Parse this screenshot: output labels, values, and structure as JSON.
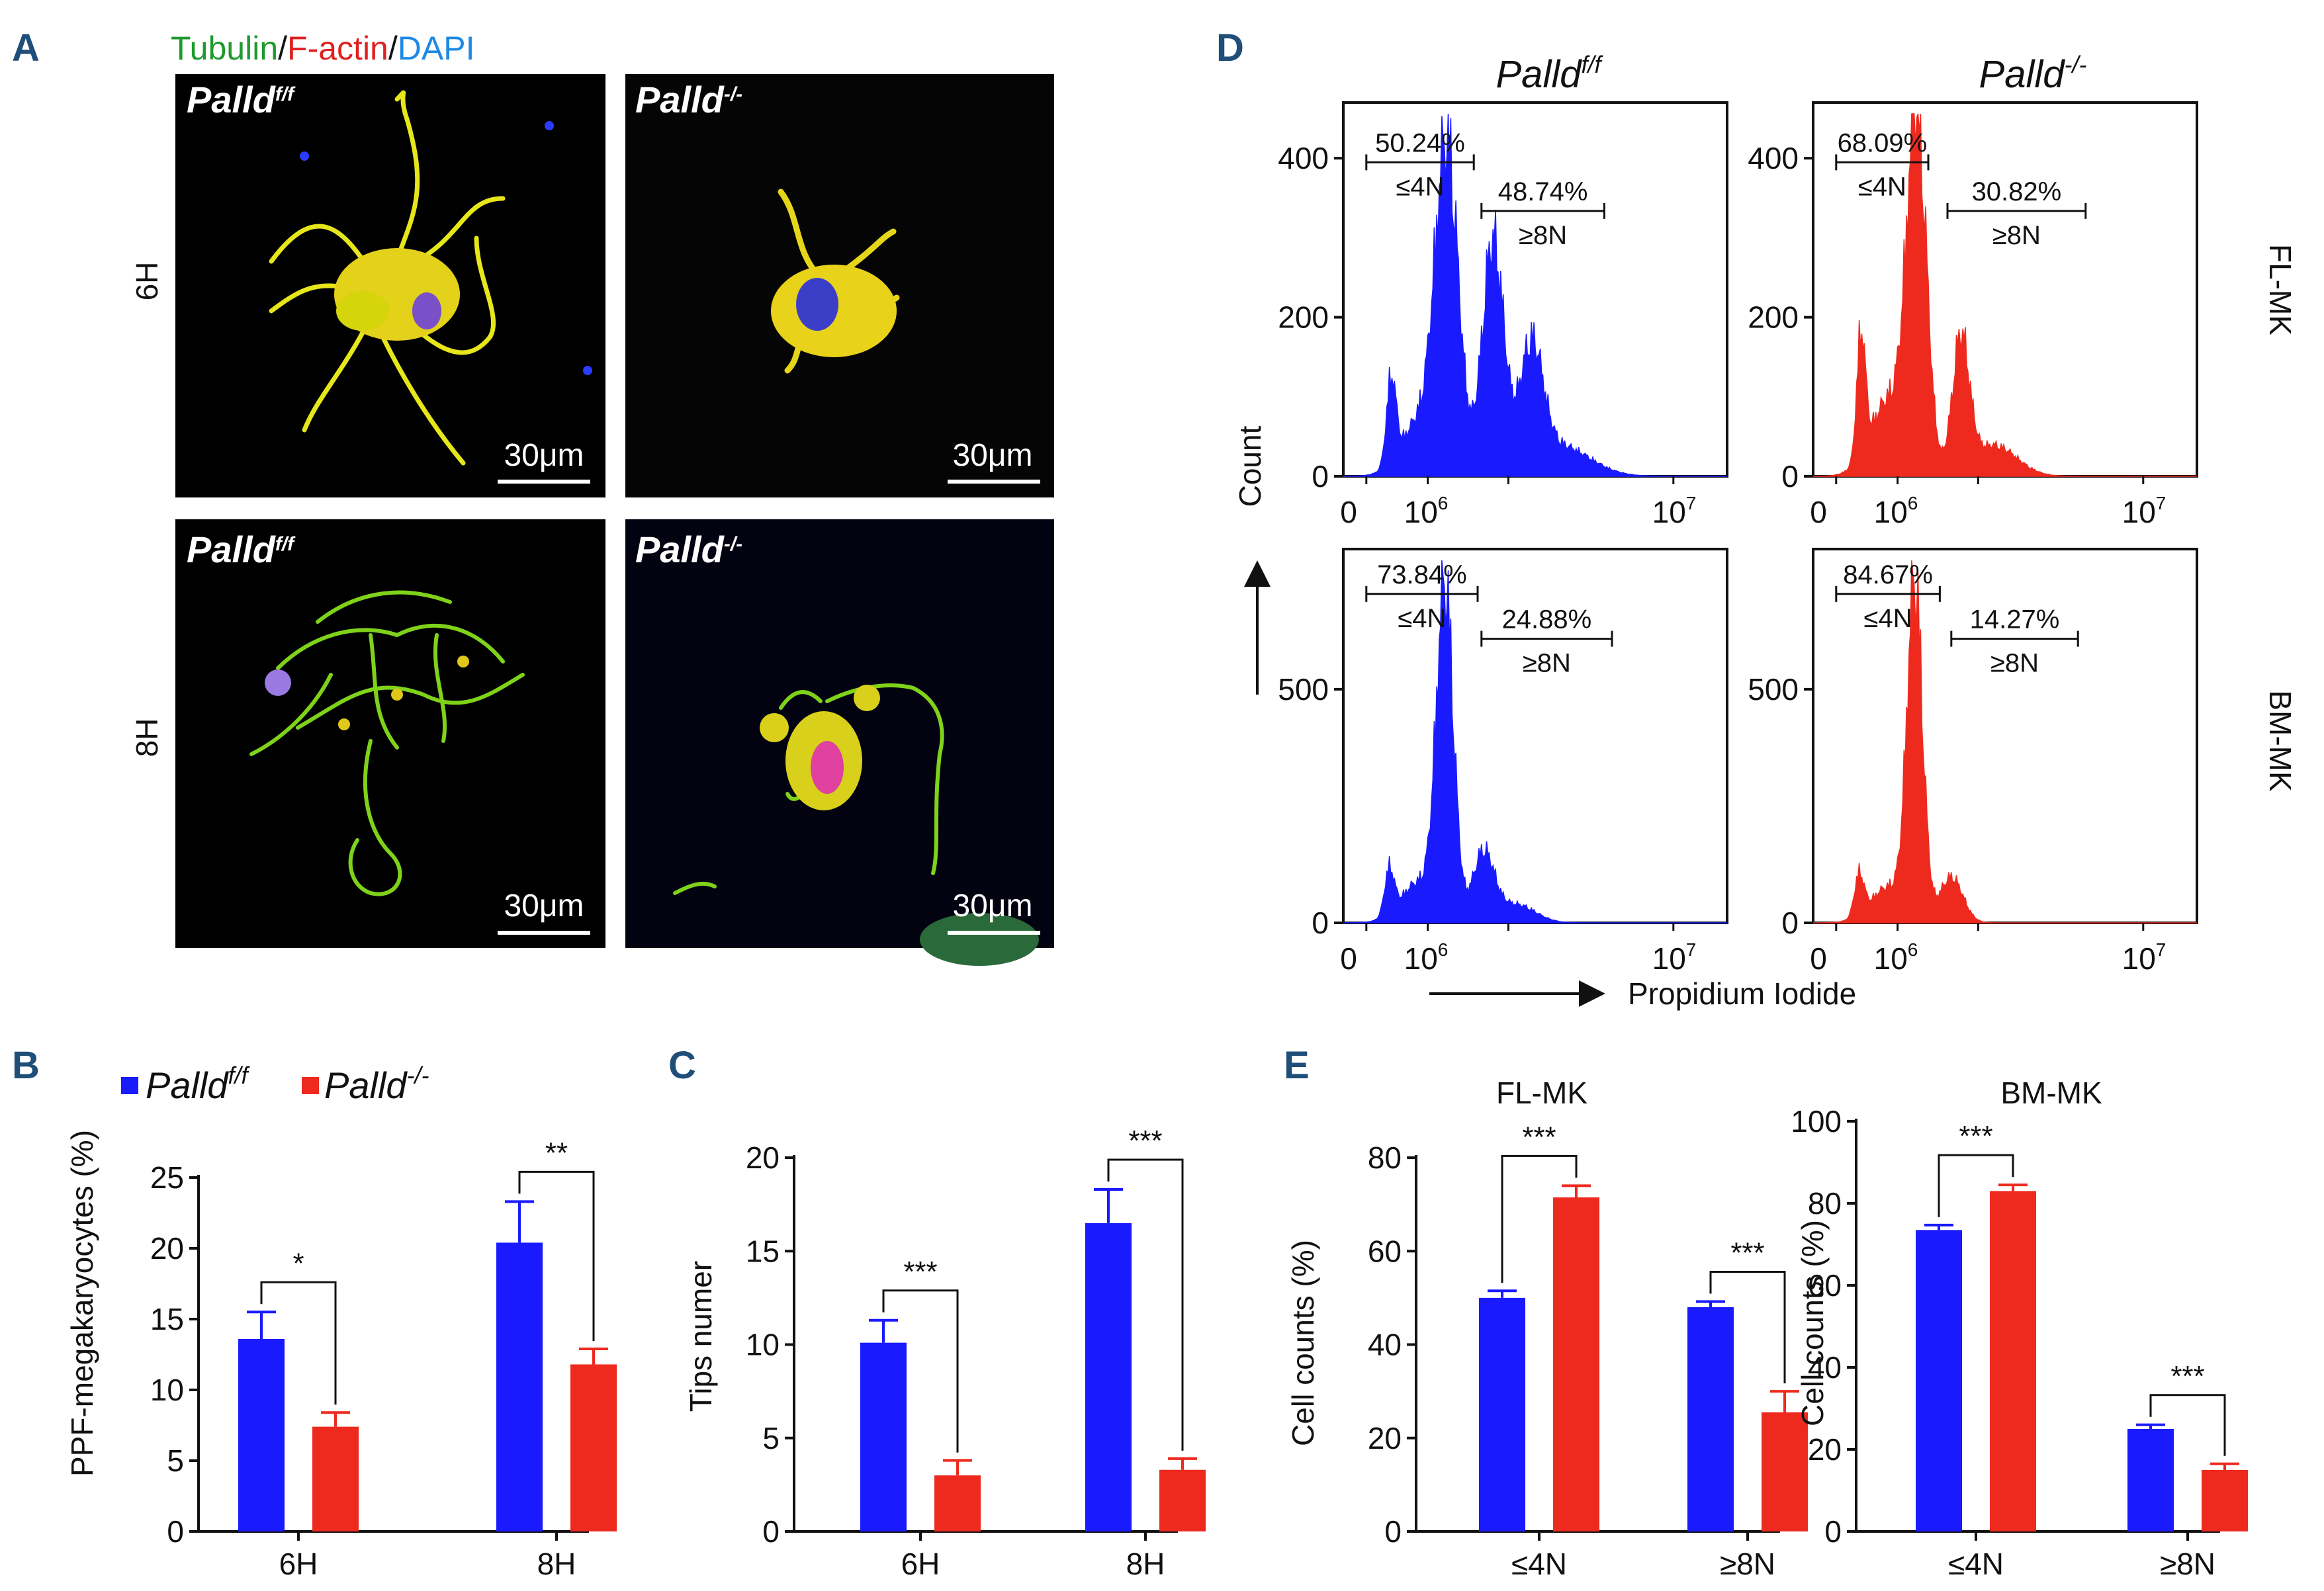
{
  "panels": {
    "A": "A",
    "B": "B",
    "C": "C",
    "D": "D",
    "E": "E"
  },
  "legend": {
    "label_ff": "Palld",
    "sup_ff": "f/f",
    "label_ko": "Palld",
    "sup_ko": "-/-"
  },
  "colors": {
    "ff": "#1a1aff",
    "ko": "#ee2a1f"
  },
  "panelA": {
    "stain_tubulin": "Tubulin",
    "stain_factin": "F-actin",
    "stain_dapi": "DAPI",
    "sep": "/",
    "row_6h": "6H",
    "row_8h": "8H",
    "scale": "30μm",
    "genotype": "Palld",
    "sup_ff": "f/f",
    "sup_ko": "-/-"
  },
  "panelD": {
    "col_ff": "Palld",
    "col_ff_sup": "f/f",
    "col_ko": "Palld",
    "col_ko_sup": "-/-",
    "row_fl": "FL-MK",
    "row_bm": "BM-MK",
    "ylabel": "Count",
    "xlabel": "Propidium Iodide",
    "x_ticks": {
      "t0": "0",
      "t6": "10",
      "e6": "6",
      "t7": "10",
      "e7": "7"
    },
    "fl_ticks": [
      "0",
      "200",
      "400"
    ],
    "bm_ticks": [
      "0",
      "500"
    ],
    "gate_low": "≤4N",
    "gate_high": "≥8N",
    "gates": {
      "fl_ff": {
        "low": "50.24%",
        "high": "48.74%"
      },
      "fl_ko": {
        "low": "68.09%",
        "high": "30.82%"
      },
      "bm_ff": {
        "low": "73.84%",
        "high": "24.88%"
      },
      "bm_ko": {
        "low": "84.67%",
        "high": "14.27%"
      }
    }
  },
  "chart_data": [
    {
      "panel": "B",
      "type": "bar",
      "categories": [
        "6H",
        "8H"
      ],
      "series": [
        {
          "name": "Palld f/f",
          "values": [
            13.6,
            20.4
          ],
          "errors": [
            1.9,
            2.9
          ]
        },
        {
          "name": "Palld -/-",
          "values": [
            7.4,
            11.8
          ],
          "errors": [
            1.0,
            1.1
          ]
        }
      ],
      "ylabel": "PPF-megakaryocytes (%)",
      "ylim": [
        0,
        25
      ],
      "yticks": [
        "0",
        "5",
        "10",
        "15",
        "20",
        "25"
      ],
      "significance": [
        "*",
        "**"
      ]
    },
    {
      "panel": "C",
      "type": "bar",
      "categories": [
        "6H",
        "8H"
      ],
      "series": [
        {
          "name": "Palld f/f",
          "values": [
            10.1,
            16.5
          ],
          "errors": [
            1.2,
            1.8
          ]
        },
        {
          "name": "Palld -/-",
          "values": [
            3.0,
            3.3
          ],
          "errors": [
            0.8,
            0.6
          ]
        }
      ],
      "ylabel": "Tips numer",
      "ylim": [
        0,
        20
      ],
      "yticks": [
        "0",
        "5",
        "10",
        "15",
        "20"
      ],
      "significance": [
        "***",
        "***"
      ]
    },
    {
      "panel": "E",
      "type": "bar",
      "title": "FL-MK",
      "categories": [
        "≤4N",
        "≥8N"
      ],
      "series": [
        {
          "name": "Palld f/f",
          "values": [
            50,
            48
          ],
          "errors": [
            1.5,
            1.2
          ]
        },
        {
          "name": "Palld -/-",
          "values": [
            71.5,
            25.5
          ],
          "errors": [
            2.5,
            4.5
          ]
        }
      ],
      "ylabel": "Cell counts (%)",
      "ylim": [
        0,
        80
      ],
      "yticks": [
        "0",
        "20",
        "40",
        "60",
        "80"
      ],
      "significance": [
        "***",
        "***"
      ]
    },
    {
      "panel": "E",
      "type": "bar",
      "title": "BM-MK",
      "categories": [
        "≤4N",
        "≥8N"
      ],
      "series": [
        {
          "name": "Palld f/f",
          "values": [
            73.5,
            25
          ],
          "errors": [
            1.2,
            1.0
          ]
        },
        {
          "name": "Palld -/-",
          "values": [
            83,
            15
          ],
          "errors": [
            1.5,
            1.5
          ]
        }
      ],
      "ylabel": "Cell counts (%)",
      "ylim": [
        0,
        100
      ],
      "yticks": [
        "0",
        "20",
        "40",
        "60",
        "80",
        "100"
      ],
      "significance": [
        "***",
        "***"
      ]
    }
  ]
}
